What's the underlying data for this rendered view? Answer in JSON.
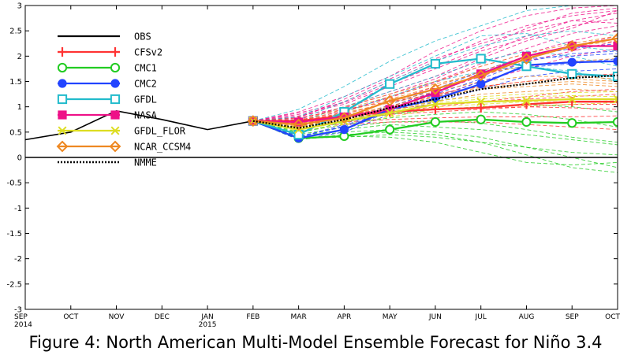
{
  "caption": "Figure 4: North American Multi-Model Ensemble Forecast for Niño 3.4",
  "chart_data": {
    "type": "line",
    "x": [
      "SEP 2014",
      "OCT",
      "NOV",
      "DEC",
      "JAN 2015",
      "FEB",
      "MAR",
      "APR",
      "MAY",
      "JUN",
      "JUL",
      "AUG",
      "SEP",
      "OCT"
    ],
    "x_tick_labels": [
      [
        "SEP",
        "2014"
      ],
      [
        "OCT"
      ],
      [
        "NOV"
      ],
      [
        "DEC"
      ],
      [
        "JAN",
        "2015"
      ],
      [
        "FEB"
      ],
      [
        "MAR"
      ],
      [
        "APR"
      ],
      [
        "MAY"
      ],
      [
        "JUN"
      ],
      [
        "JUL"
      ],
      [
        "AUG"
      ],
      [
        "SEP"
      ],
      [
        "OCT"
      ]
    ],
    "y_tick_labels": [
      "-3",
      "-2.5",
      "-2",
      "-1.5",
      "-1",
      "-0.5",
      "0",
      "0.5",
      "1",
      "1.5",
      "2",
      "2.5",
      "3"
    ],
    "ylim": [
      -3,
      3
    ],
    "y_ticks": [
      -3,
      -2.5,
      -2,
      -1.5,
      -1,
      -0.5,
      0,
      0.5,
      1,
      1.5,
      2,
      2.5,
      3
    ],
    "zero_line": true,
    "legend_position": "top-left",
    "series": [
      {
        "name": "OBS",
        "color": "#000000",
        "style": "solid",
        "marker": "none",
        "values": [
          0.35,
          0.5,
          0.92,
          0.75,
          0.55,
          0.72,
          null,
          null,
          null,
          null,
          null,
          null,
          null,
          null
        ]
      },
      {
        "name": "CFSv2",
        "color": "#ff3333",
        "style": "solid",
        "marker": "plus",
        "values": [
          null,
          null,
          null,
          null,
          null,
          0.72,
          0.72,
          0.82,
          0.9,
          0.95,
          0.98,
          1.05,
          1.1,
          1.1
        ]
      },
      {
        "name": "CMC1",
        "color": "#22cc22",
        "style": "solid",
        "marker": "circle-open",
        "values": [
          null,
          null,
          null,
          null,
          null,
          0.72,
          0.38,
          0.42,
          0.55,
          0.7,
          0.75,
          0.7,
          0.68,
          0.7
        ]
      },
      {
        "name": "CMC2",
        "color": "#2244ff",
        "style": "solid",
        "marker": "circle-filled",
        "values": [
          null,
          null,
          null,
          null,
          null,
          0.72,
          0.38,
          0.55,
          0.95,
          1.15,
          1.45,
          1.82,
          1.88,
          1.9
        ]
      },
      {
        "name": "GFDL",
        "color": "#22bbcc",
        "style": "solid",
        "marker": "square-open",
        "values": [
          null,
          null,
          null,
          null,
          null,
          0.72,
          0.45,
          0.9,
          1.45,
          1.85,
          1.95,
          1.8,
          1.65,
          1.6
        ]
      },
      {
        "name": "NASA",
        "color": "#ee1188",
        "style": "solid",
        "marker": "square-filled",
        "values": [
          null,
          null,
          null,
          null,
          null,
          0.72,
          0.7,
          0.8,
          0.95,
          1.28,
          1.65,
          2.0,
          2.2,
          2.2
        ]
      },
      {
        "name": "GFDL_FLOR",
        "color": "#dddd22",
        "style": "solid",
        "marker": "x",
        "values": [
          null,
          null,
          null,
          null,
          null,
          0.72,
          0.55,
          0.72,
          0.88,
          1.05,
          1.1,
          1.12,
          1.15,
          1.15
        ]
      },
      {
        "name": "NCAR_CCSM4",
        "color": "#ee8822",
        "style": "solid",
        "marker": "diamond-open",
        "values": [
          null,
          null,
          null,
          null,
          null,
          0.72,
          0.65,
          0.78,
          1.12,
          1.35,
          1.62,
          1.95,
          2.2,
          2.35
        ]
      },
      {
        "name": "NMME",
        "color": "#000000",
        "style": "dotted",
        "marker": "none",
        "values": [
          null,
          null,
          null,
          null,
          null,
          0.72,
          0.58,
          0.75,
          0.98,
          1.15,
          1.35,
          1.45,
          1.57,
          1.62
        ]
      }
    ]
  },
  "ensemble": {
    "members": [
      {
        "color": "#ee1188",
        "values": [
          0.72,
          0.8,
          1.1,
          1.5,
          1.9,
          2.3,
          2.6,
          2.8,
          2.9
        ]
      },
      {
        "color": "#ee1188",
        "values": [
          0.72,
          0.75,
          1.0,
          1.3,
          1.6,
          2.0,
          2.4,
          2.7,
          2.85
        ]
      },
      {
        "color": "#ee1188",
        "values": [
          0.72,
          0.9,
          1.2,
          1.6,
          2.1,
          2.5,
          2.8,
          2.95,
          3.0
        ]
      },
      {
        "color": "#ee1188",
        "values": [
          0.72,
          0.7,
          0.85,
          1.1,
          1.4,
          1.7,
          2.0,
          2.2,
          2.4
        ]
      },
      {
        "color": "#ee1188",
        "values": [
          0.72,
          0.68,
          0.9,
          1.2,
          1.5,
          1.85,
          2.15,
          2.45,
          2.6
        ]
      },
      {
        "color": "#ee1188",
        "values": [
          0.72,
          0.85,
          1.05,
          1.4,
          1.75,
          2.1,
          2.35,
          2.6,
          2.75
        ]
      },
      {
        "color": "#ee1188",
        "values": [
          0.72,
          0.78,
          1.15,
          1.55,
          1.95,
          2.25,
          2.5,
          2.7,
          2.65
        ]
      },
      {
        "color": "#ee1188",
        "values": [
          0.72,
          0.65,
          0.8,
          1.0,
          1.3,
          1.6,
          1.9,
          2.1,
          2.3
        ]
      },
      {
        "color": "#ee1188",
        "values": [
          0.72,
          0.82,
          0.98,
          1.25,
          1.55,
          1.95,
          2.3,
          2.55,
          2.9
        ]
      },
      {
        "color": "#ee1188",
        "values": [
          0.72,
          0.72,
          0.92,
          1.18,
          1.48,
          1.8,
          2.05,
          2.3,
          2.5
        ]
      },
      {
        "color": "#ee1188",
        "values": [
          0.72,
          0.88,
          1.08,
          1.45,
          1.8,
          2.15,
          2.55,
          2.85,
          2.95
        ]
      },
      {
        "color": "#ee1188",
        "values": [
          0.72,
          0.6,
          0.75,
          0.95,
          1.2,
          1.5,
          1.75,
          2.0,
          2.15
        ]
      },
      {
        "color": "#22bbcc",
        "values": [
          0.72,
          0.95,
          1.4,
          1.9,
          2.3,
          2.6,
          2.9,
          3.0,
          3.0
        ]
      },
      {
        "color": "#22bbcc",
        "values": [
          0.72,
          0.8,
          1.2,
          1.6,
          2.0,
          2.4,
          2.45,
          2.2,
          2.1
        ]
      },
      {
        "color": "#22bbcc",
        "values": [
          0.72,
          0.7,
          1.0,
          1.3,
          1.6,
          1.9,
          2.1,
          2.0,
          1.8
        ]
      },
      {
        "color": "#22bbcc",
        "values": [
          0.72,
          0.6,
          0.9,
          1.2,
          1.5,
          1.7,
          1.8,
          1.7,
          1.5
        ]
      },
      {
        "color": "#22bbcc",
        "values": [
          0.72,
          0.75,
          1.1,
          1.5,
          1.9,
          2.2,
          2.4,
          2.5,
          2.4
        ]
      },
      {
        "color": "#22cc22",
        "values": [
          0.72,
          0.4,
          0.5,
          0.55,
          0.5,
          0.4,
          0.2,
          0.0,
          -0.2
        ]
      },
      {
        "color": "#22cc22",
        "values": [
          0.72,
          0.35,
          0.45,
          0.5,
          0.45,
          0.3,
          0.05,
          -0.2,
          -0.3
        ]
      },
      {
        "color": "#22cc22",
        "values": [
          0.72,
          0.45,
          0.6,
          0.7,
          0.72,
          0.68,
          0.55,
          0.4,
          0.3
        ]
      },
      {
        "color": "#22cc22",
        "values": [
          0.72,
          0.5,
          0.65,
          0.78,
          0.85,
          0.9,
          0.85,
          0.75,
          0.6
        ]
      },
      {
        "color": "#22cc22",
        "values": [
          0.72,
          0.38,
          0.4,
          0.45,
          0.4,
          0.3,
          0.2,
          0.1,
          0.05
        ]
      },
      {
        "color": "#22cc22",
        "values": [
          0.72,
          0.42,
          0.55,
          0.65,
          0.6,
          0.55,
          0.45,
          0.35,
          0.25
        ]
      },
      {
        "color": "#22cc22",
        "values": [
          0.72,
          0.48,
          0.7,
          0.85,
          0.95,
          1.0,
          1.05,
          1.0,
          0.9
        ]
      },
      {
        "color": "#22cc22",
        "values": [
          0.72,
          0.36,
          0.42,
          0.4,
          0.3,
          0.1,
          -0.1,
          -0.15,
          -0.1
        ]
      },
      {
        "color": "#2244ff",
        "values": [
          0.72,
          0.4,
          0.65,
          1.05,
          1.35,
          1.7,
          2.0,
          2.15,
          2.25
        ]
      },
      {
        "color": "#2244ff",
        "values": [
          0.72,
          0.35,
          0.5,
          0.85,
          1.1,
          1.35,
          1.6,
          1.7,
          1.75
        ]
      },
      {
        "color": "#2244ff",
        "values": [
          0.72,
          0.42,
          0.6,
          0.95,
          1.25,
          1.55,
          1.9,
          2.05,
          2.1
        ]
      },
      {
        "color": "#2244ff",
        "values": [
          0.72,
          0.38,
          0.55,
          0.9,
          1.18,
          1.5,
          1.78,
          1.85,
          1.95
        ]
      },
      {
        "color": "#2244ff",
        "values": [
          0.72,
          0.4,
          0.62,
          1.0,
          1.3,
          1.65,
          1.95,
          2.0,
          2.05
        ]
      },
      {
        "color": "#ee8822",
        "values": [
          0.72,
          0.65,
          0.85,
          1.1,
          1.3,
          1.5,
          1.6,
          1.6,
          1.55
        ]
      },
      {
        "color": "#ee8822",
        "values": [
          0.72,
          0.7,
          0.95,
          1.2,
          1.45,
          1.65,
          1.8,
          1.9,
          1.95
        ]
      },
      {
        "color": "#ee8822",
        "values": [
          0.72,
          0.6,
          0.8,
          1.0,
          1.2,
          1.35,
          1.4,
          1.45,
          1.4
        ]
      },
      {
        "color": "#ee8822",
        "values": [
          0.72,
          0.68,
          0.9,
          1.15,
          1.4,
          1.7,
          2.0,
          2.2,
          2.3
        ]
      },
      {
        "color": "#ee8822",
        "values": [
          0.72,
          0.62,
          0.78,
          0.95,
          1.1,
          1.25,
          1.3,
          1.35,
          1.3
        ]
      },
      {
        "color": "#ee8822",
        "values": [
          0.72,
          0.72,
          1.0,
          1.25,
          1.5,
          1.8,
          2.05,
          2.25,
          2.4
        ]
      },
      {
        "color": "#ee8822",
        "values": [
          0.72,
          0.66,
          0.88,
          1.08,
          1.25,
          1.4,
          1.5,
          1.55,
          1.5
        ]
      },
      {
        "color": "#ee8822",
        "values": [
          0.72,
          0.64,
          0.82,
          1.02,
          1.22,
          1.38,
          1.45,
          1.5,
          1.45
        ]
      },
      {
        "color": "#ff3333",
        "values": [
          0.72,
          0.7,
          0.75,
          0.85,
          0.9,
          0.95,
          1.0,
          1.05,
          1.05
        ]
      },
      {
        "color": "#ff3333",
        "values": [
          0.72,
          0.75,
          0.85,
          0.95,
          1.05,
          1.1,
          1.15,
          1.2,
          1.25
        ]
      },
      {
        "color": "#ff3333",
        "values": [
          0.72,
          0.68,
          0.7,
          0.75,
          0.78,
          0.8,
          0.8,
          0.8,
          0.82
        ]
      },
      {
        "color": "#ff3333",
        "values": [
          0.72,
          0.72,
          0.8,
          0.9,
          1.0,
          1.1,
          1.2,
          1.3,
          1.35
        ]
      },
      {
        "color": "#ff3333",
        "values": [
          0.72,
          0.65,
          0.65,
          0.7,
          0.7,
          0.7,
          0.65,
          0.6,
          0.55
        ]
      },
      {
        "color": "#ff3333",
        "values": [
          0.72,
          0.78,
          0.95,
          1.1,
          1.25,
          1.4,
          1.5,
          1.6,
          1.65
        ]
      },
      {
        "color": "#ff3333",
        "values": [
          0.72,
          0.7,
          0.78,
          0.88,
          0.95,
          0.98,
          1.0,
          0.98,
          0.95
        ]
      },
      {
        "color": "#dddd22",
        "values": [
          0.72,
          0.55,
          0.7,
          0.85,
          1.0,
          1.05,
          1.1,
          1.1,
          1.12
        ]
      },
      {
        "color": "#dddd22",
        "values": [
          0.72,
          0.58,
          0.75,
          0.92,
          1.08,
          1.15,
          1.2,
          1.22,
          1.2
        ]
      },
      {
        "color": "#dddd22",
        "values": [
          0.72,
          0.52,
          0.65,
          0.8,
          0.95,
          1.0,
          1.02,
          1.05,
          1.08
        ]
      },
      {
        "color": "#dddd22",
        "values": [
          0.72,
          0.6,
          0.78,
          0.95,
          1.12,
          1.2,
          1.25,
          1.28,
          1.3
        ]
      }
    ]
  }
}
